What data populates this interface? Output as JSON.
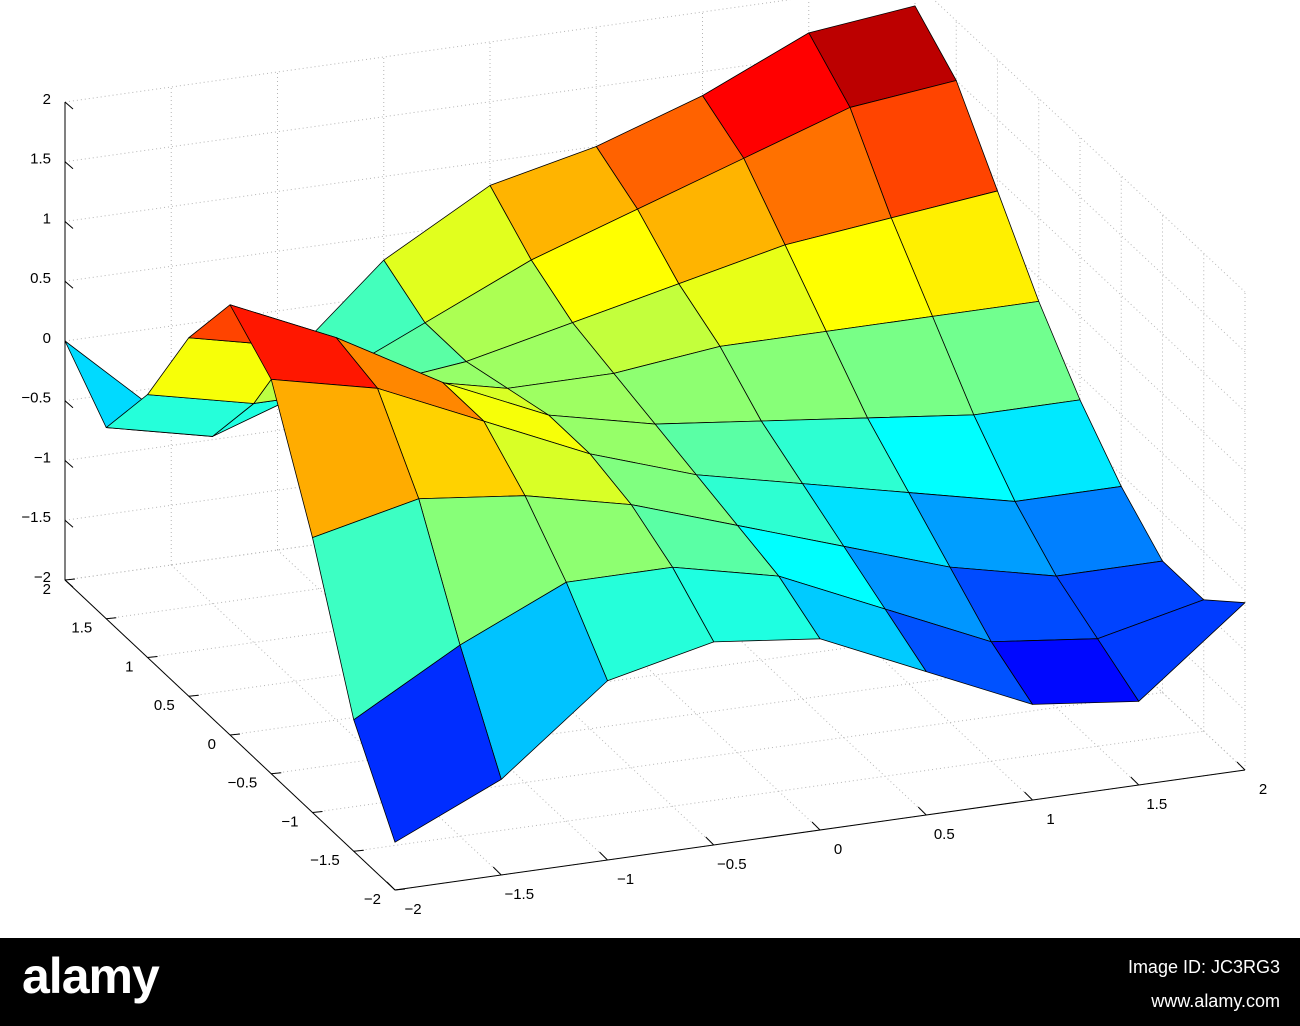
{
  "chart_data": {
    "type": "surface",
    "x": [
      -2,
      -1.5,
      -1,
      -0.5,
      0,
      0.5,
      1,
      1.5,
      2
    ],
    "y": [
      -2,
      -1.5,
      -1,
      -0.5,
      0,
      0.5,
      1,
      1.5,
      2
    ],
    "z": [
      [
        -1.6,
        -1.2,
        -0.5,
        -0.3,
        -0.4,
        -0.8,
        -1.2,
        -1.3,
        -0.6
      ],
      [
        -0.9,
        -0.4,
        0,
        0,
        -0.2,
        -0.6,
        -1.0,
        -1.1,
        -0.9
      ],
      [
        0.3,
        0.5,
        0.4,
        0.2,
        -0.1,
        -0.4,
        -0.7,
        -0.9,
        -0.9
      ],
      [
        1.3,
        1.1,
        0.7,
        0.3,
        0,
        -0.2,
        -0.4,
        -0.6,
        -0.6
      ],
      [
        1.6,
        1.2,
        0.7,
        0.3,
        0.1,
        0,
        -0.1,
        -0.2,
        -0.2
      ],
      [
        1.0,
        0.8,
        0.4,
        0.2,
        0.2,
        0.3,
        0.3,
        0.3,
        0.3
      ],
      [
        0.2,
        0,
        0,
        0.1,
        0.3,
        0.5,
        0.7,
        0.8,
        0.9
      ],
      [
        -0.4,
        -0.6,
        -0.3,
        0.1,
        0.5,
        0.8,
        1.1,
        1.4,
        1.5
      ],
      [
        0,
        -0.8,
        -0.5,
        0.3,
        0.8,
        1.0,
        1.3,
        1.7,
        1.8
      ]
    ],
    "xlim": [
      -2,
      2
    ],
    "ylim": [
      -2,
      2
    ],
    "zlim": [
      -2,
      2
    ],
    "xticks": [
      {
        "value": -2,
        "label": "−2"
      },
      {
        "value": -1.5,
        "label": "−1.5"
      },
      {
        "value": -1,
        "label": "−1"
      },
      {
        "value": -0.5,
        "label": "−0.5"
      },
      0,
      0.5,
      1,
      1.5,
      2
    ],
    "yticks": [
      {
        "value": -2,
        "label": "−2"
      },
      {
        "value": -1.5,
        "label": "−1.5"
      },
      {
        "value": -1,
        "label": "−1"
      },
      {
        "value": -0.5,
        "label": "−0.5"
      },
      0,
      0.5,
      1,
      1.5,
      2
    ],
    "zticks": [
      {
        "value": -2,
        "label": "−2"
      },
      {
        "value": -1.5,
        "label": "−1.5"
      },
      {
        "value": -1,
        "label": "−1"
      },
      {
        "value": -0.5,
        "label": "−0.5"
      },
      0,
      0.5,
      1,
      1.5,
      2
    ],
    "grid": true,
    "colormap": "jet",
    "edge_color": "#000000"
  },
  "watermark": {
    "logo": "alamy",
    "image_id": "Image ID: JC3RG3",
    "site": "www.alamy.com"
  }
}
